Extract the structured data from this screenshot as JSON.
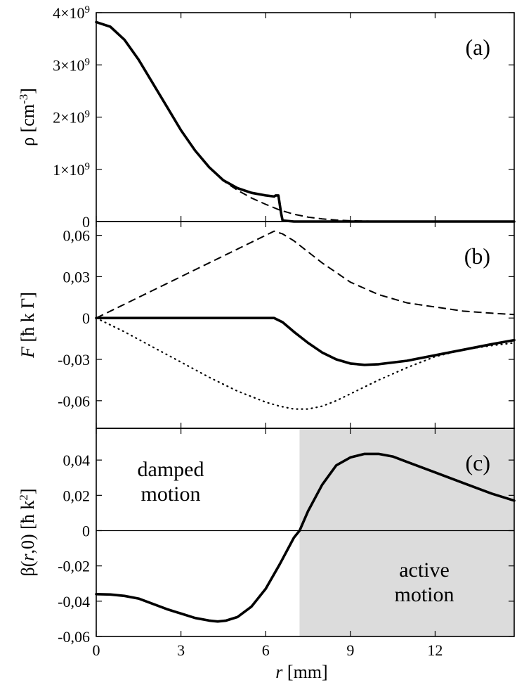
{
  "chart_data": {
    "type": "line",
    "x_axis": {
      "label_var": "r",
      "label_unit": "[mm]",
      "xlim": [
        0,
        14.8
      ],
      "ticks": [
        0,
        3,
        6,
        9,
        12
      ],
      "tick_labels": [
        "0",
        "3",
        "6",
        "9",
        "12"
      ]
    },
    "panels": [
      {
        "id": "a",
        "tag": "(a)",
        "ylabel": "ρ [cm-3]",
        "ylabel_parts": {
          "main": "ρ [cm",
          "sup": "-3",
          "close": "]"
        },
        "ylim": [
          0,
          4000000000.0
        ],
        "yticks": [
          0,
          1000000000.0,
          2000000000.0,
          3000000000.0,
          4000000000.0
        ],
        "ytick_labels": [
          {
            "base": "0",
            "exp": ""
          },
          {
            "base": "1×10",
            "exp": "9"
          },
          {
            "base": "2×10",
            "exp": "9"
          },
          {
            "base": "3×10",
            "exp": "9"
          },
          {
            "base": "4×10",
            "exp": "9"
          }
        ],
        "series": [
          {
            "name": "density (solid)",
            "style": "solid",
            "x": [
              0,
              0.5,
              1,
              1.5,
              2,
              2.5,
              3,
              3.5,
              4,
              4.5,
              5,
              5.5,
              6,
              6.3,
              6.35,
              6.45,
              6.55,
              6.6,
              7,
              8,
              10,
              14.8
            ],
            "y": [
              3820000000.0,
              3730000000.0,
              3480000000.0,
              3100000000.0,
              2650000000.0,
              2200000000.0,
              1750000000.0,
              1360000000.0,
              1040000000.0,
              790000000.0,
              640000000.0,
              550000000.0,
              500000000.0,
              480000000.0,
              500000000.0,
              500000000.0,
              150000000.0,
              20000000.0,
              0.0,
              0.0,
              0.0,
              0.0
            ]
          },
          {
            "name": "density (dashed)",
            "style": "dashed",
            "x": [
              0,
              0.5,
              1,
              1.5,
              2,
              2.5,
              3,
              3.5,
              4,
              4.5,
              5,
              5.5,
              6,
              6.5,
              7,
              7.5,
              8,
              8.5,
              9,
              10,
              11,
              12,
              14.8
            ],
            "y": [
              3820000000.0,
              3730000000.0,
              3480000000.0,
              3100000000.0,
              2650000000.0,
              2200000000.0,
              1750000000.0,
              1360000000.0,
              1040000000.0,
              780000000.0,
              600000000.0,
              450000000.0,
              330000000.0,
              220000000.0,
              140000000.0,
              85000000.0,
              50000000.0,
              28000000.0,
              15000000.0,
              4000000.0,
              1000000.0,
              0.0,
              0.0
            ]
          }
        ]
      },
      {
        "id": "b",
        "tag": "(b)",
        "ylabel": "F [ħ k Γ]",
        "ylabel_parts": {
          "main": "F",
          "rest": " [ħ k Γ]"
        },
        "ylim": [
          -0.08,
          0.07
        ],
        "yticks": [
          -0.06,
          -0.03,
          0,
          0.03,
          0.06
        ],
        "ytick_labels": [
          "-0,06",
          "-0,03",
          "0",
          "0,03",
          "0,06"
        ],
        "series": [
          {
            "name": "force (dashed)",
            "style": "dashed",
            "x": [
              0,
              1,
              2,
              3,
              4,
              5,
              6,
              6.3,
              6.6,
              7,
              7.5,
              8,
              8.5,
              9,
              10,
              11,
              12,
              13,
              14,
              14.8
            ],
            "y": [
              0,
              0.01,
              0.02,
              0.03,
              0.04,
              0.05,
              0.06,
              0.063,
              0.061,
              0.056,
              0.048,
              0.04,
              0.033,
              0.026,
              0.017,
              0.011,
              0.008,
              0.005,
              0.0035,
              0.0025
            ]
          },
          {
            "name": "force (solid)",
            "style": "solid",
            "x": [
              0,
              2,
              4,
              6,
              6.3,
              6.6,
              7,
              7.5,
              8,
              8.5,
              9,
              9.5,
              10,
              11,
              12,
              13,
              14,
              14.8
            ],
            "y": [
              0,
              0,
              0,
              0,
              0,
              -0.003,
              -0.01,
              -0.018,
              -0.025,
              -0.03,
              -0.033,
              -0.034,
              -0.0335,
              -0.031,
              -0.027,
              -0.023,
              -0.019,
              -0.016
            ]
          },
          {
            "name": "force (dotted)",
            "style": "dotted",
            "x": [
              0,
              1,
              2,
              3,
              4,
              5,
              6,
              6.5,
              7,
              7.5,
              8,
              8.5,
              9,
              10,
              11,
              12,
              13,
              14,
              14.8
            ],
            "y": [
              0,
              -0.01,
              -0.021,
              -0.032,
              -0.043,
              -0.053,
              -0.061,
              -0.064,
              -0.066,
              -0.066,
              -0.064,
              -0.06,
              -0.055,
              -0.045,
              -0.036,
              -0.028,
              -0.023,
              -0.02,
              -0.018
            ]
          }
        ]
      },
      {
        "id": "c",
        "tag": "(c)",
        "ylabel": "β(r,0) [ħ k2]",
        "ylabel_parts": {
          "pre": "β(",
          "var": "r",
          "mid": ",0) [ħ k",
          "sup": "2",
          "close": "]"
        },
        "ylim": [
          -0.06,
          0.058
        ],
        "yticks": [
          -0.06,
          -0.04,
          -0.02,
          0,
          0.02,
          0.04
        ],
        "ytick_labels": [
          "-0,06",
          "-0,04",
          "-0,02",
          "0",
          "0,02",
          "0,04"
        ],
        "shaded_region": {
          "x_from": 7.2,
          "x_to": 14.8,
          "color": "#dcdcdc"
        },
        "annotations": [
          {
            "lines": [
              "damped",
              "motion"
            ],
            "region": "upper-left"
          },
          {
            "lines": [
              "active",
              "motion"
            ],
            "region": "lower-right"
          }
        ],
        "series": [
          {
            "name": "beta (solid)",
            "style": "solid",
            "x": [
              0,
              0.5,
              1,
              1.5,
              2,
              2.5,
              3,
              3.5,
              4,
              4.3,
              4.6,
              5,
              5.5,
              6,
              6.5,
              7,
              7.2,
              7.5,
              8,
              8.5,
              9,
              9.5,
              10,
              10.5,
              11,
              12,
              13,
              14,
              14.8
            ],
            "y": [
              -0.036,
              -0.0362,
              -0.037,
              -0.0385,
              -0.0415,
              -0.0445,
              -0.047,
              -0.0495,
              -0.051,
              -0.0515,
              -0.051,
              -0.049,
              -0.043,
              -0.033,
              -0.019,
              -0.004,
              0.0,
              0.011,
              0.026,
              0.037,
              0.0415,
              0.0435,
              0.0435,
              0.042,
              0.039,
              0.033,
              0.027,
              0.021,
              0.017
            ]
          }
        ]
      }
    ]
  }
}
